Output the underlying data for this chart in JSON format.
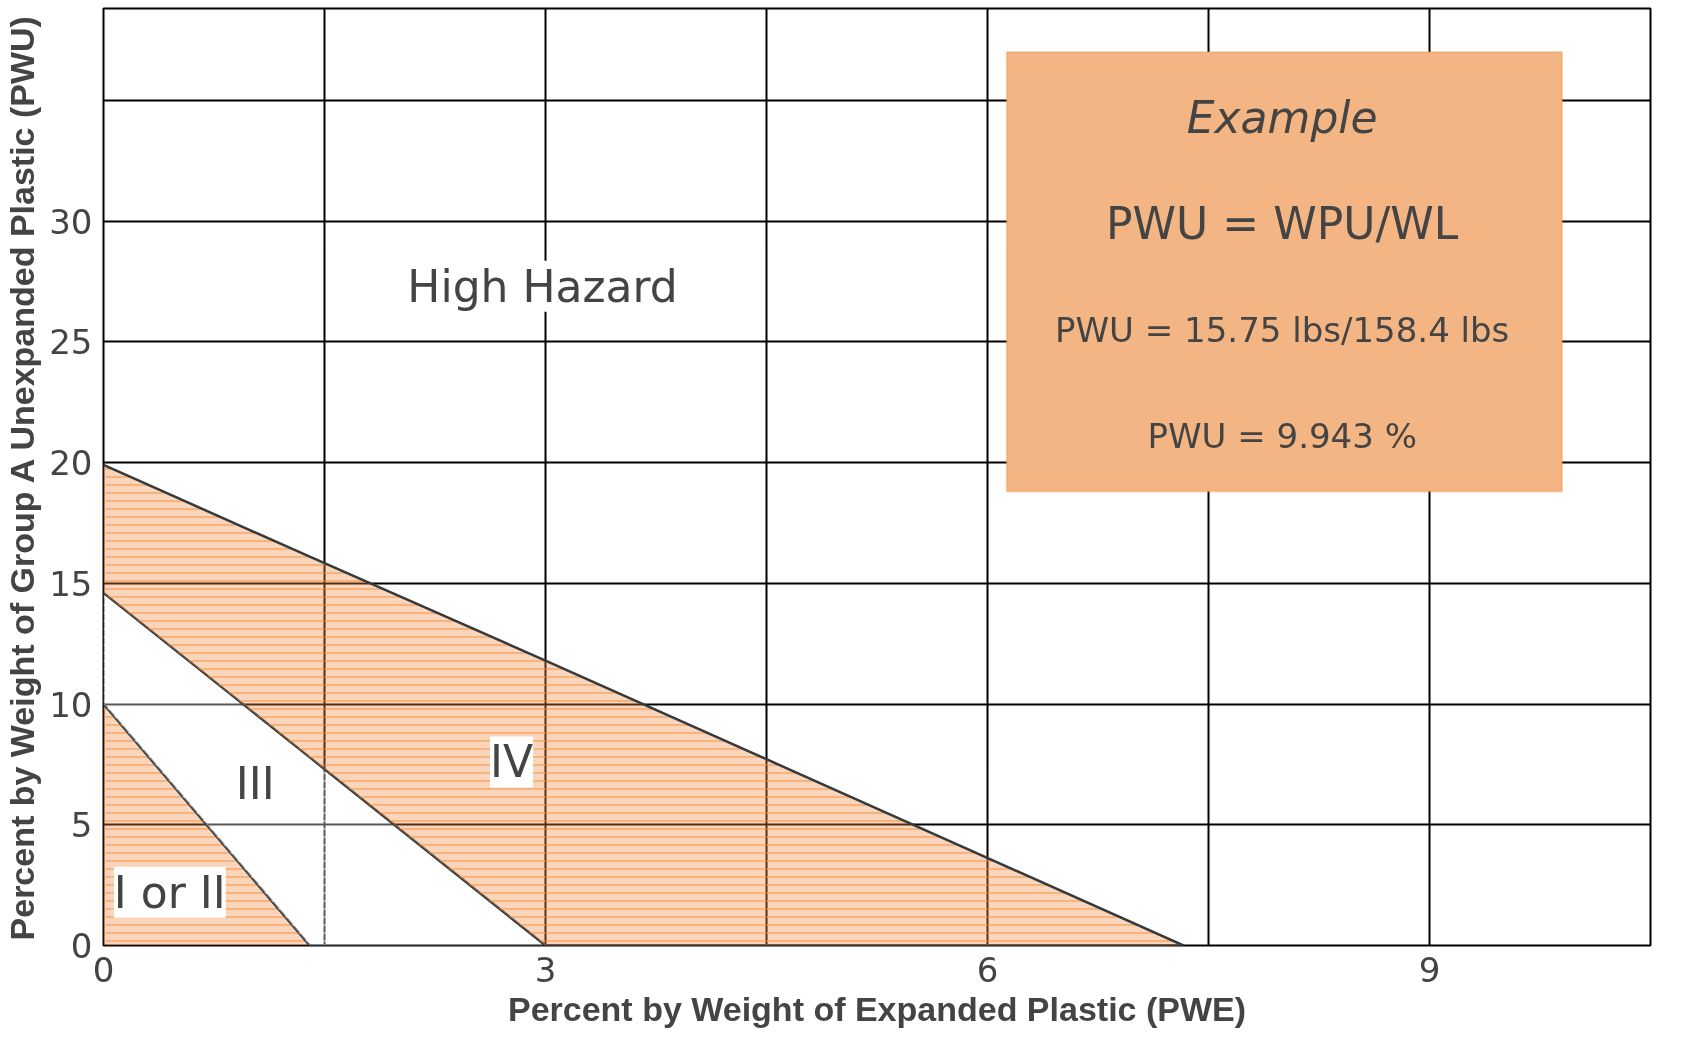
{
  "chart_data": {
    "type": "area",
    "xlabel": "Percent by Weight of Expanded Plastic (PWE)",
    "ylabel": "Percent by Weight of Group A Unexpanded Plastic (PWU)",
    "xlim": [
      0,
      10.5
    ],
    "ylim": [
      0,
      38.8
    ],
    "xticks": [
      0,
      {
        "value": 1.5,
        "label": null
      },
      3,
      {
        "value": 4.5,
        "label": null
      },
      6,
      {
        "value": 7.5,
        "label": null
      },
      9
    ],
    "yticks": [
      0,
      5,
      10,
      15,
      20,
      25,
      30,
      {
        "value": 35,
        "label": null
      }
    ],
    "grid": true,
    "stacked": true,
    "x": [
      0,
      1.4,
      3.0,
      7.33
    ],
    "series": [
      {
        "color": "#f0883a",
        "values": [
          10,
          0,
          0,
          0
        ]
      },
      {
        "color": "#ffffff",
        "values": [
          4.6,
          7.79,
          0,
          0
        ]
      },
      {
        "color": "#f0883a",
        "values": [
          5.3,
          8.31,
          11.8,
          0
        ]
      }
    ],
    "annotations": [
      "High Hazard",
      "IV",
      "III",
      "I or II",
      "Example",
      "PWU = WPU/WL",
      "PWU = 15.75 lbs/158.4 lbs",
      "PWU = 9.943 %"
    ]
  }
}
